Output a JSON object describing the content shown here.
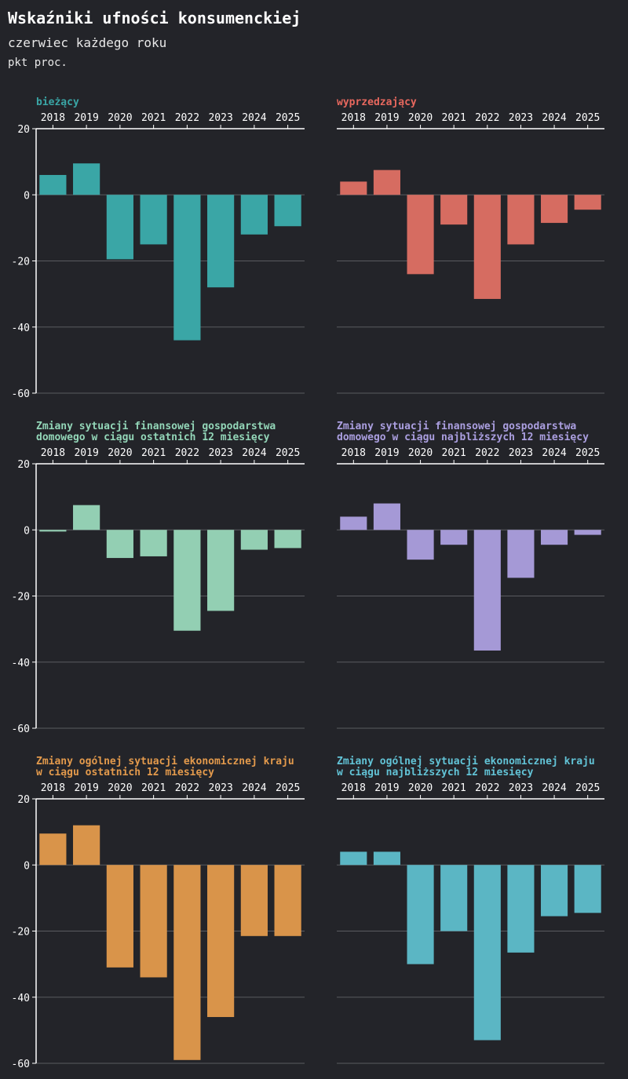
{
  "title": "Wskaźniki ufności konsumenckiej",
  "subtitle": "czerwiec każdego roku",
  "unit": "pkt proc.",
  "colors": {
    "background": "#232429",
    "grid": "#5a5b60",
    "text": "#ffffff"
  },
  "chart_data": [
    {
      "type": "bar",
      "title": "bieżący",
      "color": "#3aa6a6",
      "title_color": "#3aa6a6",
      "categories": [
        "2018",
        "2019",
        "2020",
        "2021",
        "2022",
        "2023",
        "2024",
        "2025"
      ],
      "values": [
        6,
        9.5,
        -19.5,
        -15,
        -44,
        -28,
        -12,
        -9.5
      ],
      "ylim": [
        -60,
        20
      ],
      "yticks": [
        20,
        0,
        -20,
        -40,
        -60
      ],
      "xaxis_position": "top",
      "grid": true
    },
    {
      "type": "bar",
      "title": "wyprzedzający",
      "color": "#d66c61",
      "title_color": "#e8685e",
      "categories": [
        "2018",
        "2019",
        "2020",
        "2021",
        "2022",
        "2023",
        "2024",
        "2025"
      ],
      "values": [
        4,
        7.5,
        -24,
        -9,
        -31.5,
        -15,
        -8.5,
        -4.5
      ],
      "ylim": [
        -60,
        20
      ],
      "yticks": [
        20,
        0,
        -20,
        -40,
        -60
      ],
      "xaxis_position": "top",
      "grid": true
    },
    {
      "type": "bar",
      "title": "Zmiany sytuacji finansowej gospodarstwa domowego w ciągu ostatnich 12 miesięcy",
      "title_lines": [
        "Zmiany sytuacji finansowej gospodarstwa",
        "domowego w ciągu ostatnich 12 miesięcy"
      ],
      "color": "#93cfb3",
      "title_color": "#93d6b8",
      "categories": [
        "2018",
        "2019",
        "2020",
        "2021",
        "2022",
        "2023",
        "2024",
        "2025"
      ],
      "values": [
        -0.5,
        7.5,
        -8.5,
        -8,
        -30.5,
        -24.5,
        -6,
        -5.5
      ],
      "ylim": [
        -60,
        20
      ],
      "yticks": [
        20,
        0,
        -20,
        -40,
        -60
      ],
      "xaxis_position": "top",
      "grid": true
    },
    {
      "type": "bar",
      "title": "Zmiany sytuacji finansowej gospodarstwa domowego w ciągu najbliższych 12 miesięcy",
      "title_lines": [
        "Zmiany sytuacji finansowej gospodarstwa",
        "domowego w ciągu najbliższych 12 miesięcy"
      ],
      "color": "#a599d6",
      "title_color": "#ab9fe0",
      "categories": [
        "2018",
        "2019",
        "2020",
        "2021",
        "2022",
        "2023",
        "2024",
        "2025"
      ],
      "values": [
        4,
        8,
        -9,
        -4.5,
        -36.5,
        -14.5,
        -4.5,
        -1.5
      ],
      "ylim": [
        -60,
        20
      ],
      "yticks": [
        20,
        0,
        -20,
        -40,
        -60
      ],
      "xaxis_position": "top",
      "grid": true
    },
    {
      "type": "bar",
      "title": "Zmiany ogólnej sytuacji ekonomicznej kraju w ciągu ostatnich 12 miesięcy",
      "title_lines": [
        "Zmiany ogólnej sytuacji ekonomicznej kraju",
        "w ciągu ostatnich 12 miesięcy"
      ],
      "color": "#d9944a",
      "title_color": "#e39a4c",
      "categories": [
        "2018",
        "2019",
        "2020",
        "2021",
        "2022",
        "2023",
        "2024",
        "2025"
      ],
      "values": [
        9.5,
        12,
        -31,
        -34,
        -59,
        -46,
        -21.5,
        -21.5
      ],
      "ylim": [
        -60,
        20
      ],
      "yticks": [
        20,
        0,
        -20,
        -40,
        -60
      ],
      "xaxis_position": "top",
      "grid": true
    },
    {
      "type": "bar",
      "title": "Zmiany ogólnej sytuacji ekonomicznej kraju w ciągu najbliższych 12 miesięcy",
      "title_lines": [
        "Zmiany ogólnej sytuacji ekonomicznej kraju",
        "w ciągu najbliższych 12 miesięcy"
      ],
      "color": "#5bb6c4",
      "title_color": "#62c3d6",
      "categories": [
        "2018",
        "2019",
        "2020",
        "2021",
        "2022",
        "2023",
        "2024",
        "2025"
      ],
      "values": [
        4,
        4,
        -30,
        -20,
        -53,
        -26.5,
        -15.5,
        -14.5
      ],
      "ylim": [
        -60,
        20
      ],
      "yticks": [
        20,
        0,
        -20,
        -40,
        -60
      ],
      "xaxis_position": "top",
      "grid": true
    }
  ]
}
